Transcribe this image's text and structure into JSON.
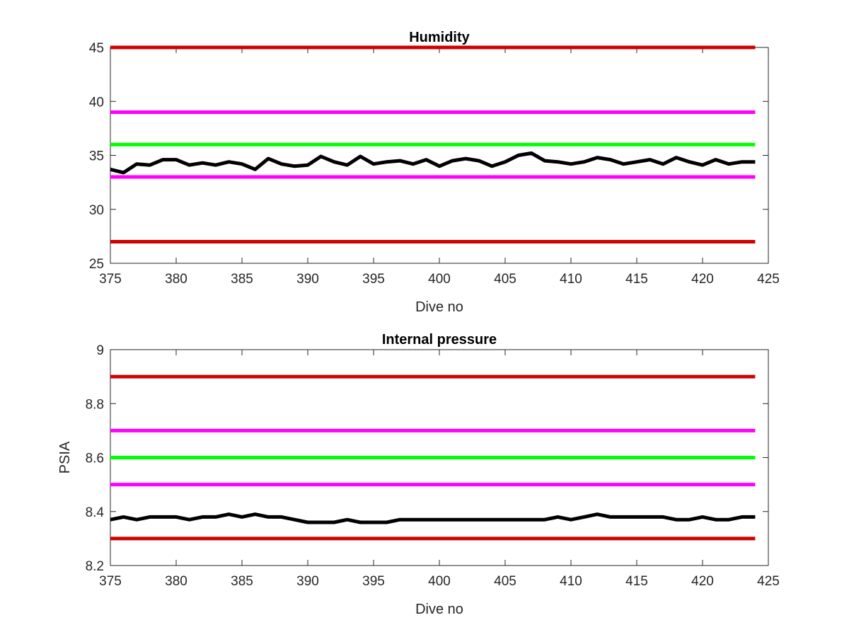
{
  "chart_data": [
    {
      "type": "line",
      "title": "Humidity",
      "xlabel": "Dive no",
      "ylabel": "",
      "xlim": [
        375,
        425
      ],
      "ylim": [
        25,
        45
      ],
      "xticks": [
        375,
        380,
        385,
        390,
        395,
        400,
        405,
        410,
        415,
        420,
        425
      ],
      "yticks": [
        25,
        30,
        35,
        40,
        45
      ],
      "grid": false,
      "limit_lines": [
        {
          "y": 45,
          "color": "#d00000"
        },
        {
          "y": 39,
          "color": "#ff00ff"
        },
        {
          "y": 36,
          "color": "#00ff00"
        },
        {
          "y": 33,
          "color": "#ff00ff"
        },
        {
          "y": 27,
          "color": "#d00000"
        }
      ],
      "series": [
        {
          "color": "#000000",
          "x": [
            375,
            376,
            377,
            378,
            379,
            380,
            381,
            382,
            383,
            384,
            385,
            386,
            387,
            388,
            389,
            390,
            391,
            392,
            393,
            394,
            395,
            396,
            397,
            398,
            399,
            400,
            401,
            402,
            403,
            404,
            405,
            406,
            407,
            408,
            409,
            410,
            411,
            412,
            413,
            414,
            415,
            416,
            417,
            418,
            419,
            420,
            421,
            422,
            423,
            424
          ],
          "y": [
            33.7,
            33.4,
            34.2,
            34.1,
            34.6,
            34.6,
            34.1,
            34.3,
            34.1,
            34.4,
            34.2,
            33.7,
            34.7,
            34.2,
            34.0,
            34.1,
            34.9,
            34.4,
            34.1,
            34.9,
            34.2,
            34.4,
            34.5,
            34.2,
            34.6,
            34.0,
            34.5,
            34.7,
            34.5,
            34.0,
            34.4,
            35.0,
            35.2,
            34.5,
            34.4,
            34.2,
            34.4,
            34.8,
            34.6,
            34.2,
            34.4,
            34.6,
            34.2,
            34.8,
            34.4,
            34.1,
            34.6,
            34.2,
            34.4,
            34.4
          ]
        }
      ]
    },
    {
      "type": "line",
      "title": "Internal pressure",
      "xlabel": "Dive no",
      "ylabel": "PSIA",
      "xlim": [
        375,
        425
      ],
      "ylim": [
        8.2,
        9.0
      ],
      "xticks": [
        375,
        380,
        385,
        390,
        395,
        400,
        405,
        410,
        415,
        420,
        425
      ],
      "yticks": [
        8.2,
        8.4,
        8.6,
        8.8,
        9.0
      ],
      "ytick_labels": [
        "8.2",
        "8.4",
        "8.6",
        "8.8",
        "9"
      ],
      "grid": false,
      "limit_lines": [
        {
          "y": 8.9,
          "color": "#d00000"
        },
        {
          "y": 8.7,
          "color": "#ff00ff"
        },
        {
          "y": 8.6,
          "color": "#00ff00"
        },
        {
          "y": 8.5,
          "color": "#ff00ff"
        },
        {
          "y": 8.3,
          "color": "#d00000"
        }
      ],
      "series": [
        {
          "color": "#000000",
          "x": [
            375,
            376,
            377,
            378,
            379,
            380,
            381,
            382,
            383,
            384,
            385,
            386,
            387,
            388,
            389,
            390,
            391,
            392,
            393,
            394,
            395,
            396,
            397,
            398,
            399,
            400,
            401,
            402,
            403,
            404,
            405,
            406,
            407,
            408,
            409,
            410,
            411,
            412,
            413,
            414,
            415,
            416,
            417,
            418,
            419,
            420,
            421,
            422,
            423,
            424
          ],
          "y": [
            8.37,
            8.38,
            8.37,
            8.38,
            8.38,
            8.38,
            8.37,
            8.38,
            8.38,
            8.39,
            8.38,
            8.39,
            8.38,
            8.38,
            8.37,
            8.36,
            8.36,
            8.36,
            8.37,
            8.36,
            8.36,
            8.36,
            8.37,
            8.37,
            8.37,
            8.37,
            8.37,
            8.37,
            8.37,
            8.37,
            8.37,
            8.37,
            8.37,
            8.37,
            8.38,
            8.37,
            8.38,
            8.39,
            8.38,
            8.38,
            8.38,
            8.38,
            8.38,
            8.37,
            8.37,
            8.38,
            8.37,
            8.37,
            8.38,
            8.38
          ]
        }
      ]
    }
  ]
}
